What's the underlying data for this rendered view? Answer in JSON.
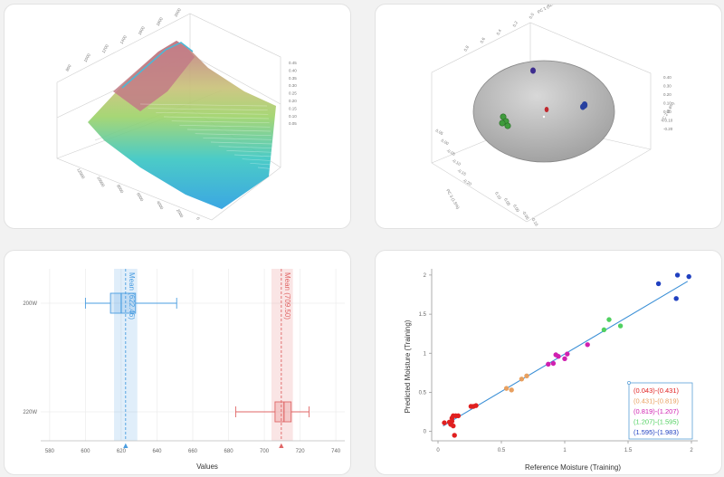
{
  "spectra3d": {
    "z_ticks": [
      "0.45",
      "0.40",
      "0.35",
      "0.30",
      "0.25",
      "0.20",
      "0.15",
      "0.10",
      "0.05"
    ],
    "back_ticks": [
      "800",
      "1000",
      "1200",
      "1400",
      "1600",
      "1800",
      "2000"
    ],
    "front_ticks": [
      "12000",
      "10000",
      "8000",
      "6000",
      "4000",
      "2000",
      "0"
    ]
  },
  "pca3d": {
    "axis_top": "PC 1 (92.5%)",
    "axis_right": "PC 2 (4.8%)",
    "axis_left": "PC 3 (1.5%)",
    "top_ticks": [
      "0.8",
      "0.6",
      "0.4",
      "0.2",
      "0.0"
    ],
    "right_ticks": [
      "0.40",
      "0.30",
      "0.20",
      "0.10",
      "0.00",
      "-0.10",
      "-0.20"
    ],
    "left_ticks": [
      "0.05",
      "0.00",
      "-0.05",
      "-0.10",
      "-0.15",
      "-0.20"
    ],
    "bottom_ticks": [
      "0.10",
      "0.05",
      "0.00",
      "-0.05",
      "-0.10"
    ],
    "colors": {
      "sphere": "#b5b5b5",
      "purple": "#3d2d8f",
      "blue": "#27409f",
      "red": "#c0282e",
      "green": "#3f9b3c"
    }
  },
  "chart_data": [
    {
      "type": "boxplot",
      "xlabel": "Values",
      "categories": [
        "200W",
        "220W"
      ],
      "xlim": [
        575,
        745
      ],
      "x_ticks": [
        "580",
        "600",
        "620",
        "640",
        "660",
        "680",
        "700",
        "720",
        "740"
      ],
      "series": [
        {
          "name": "200W",
          "min": 600,
          "q1": 614,
          "median": 620,
          "q3": 628,
          "max": 651,
          "mean": 622.46,
          "mean_label": "Mean (622.46)",
          "band": [
            616,
            629
          ],
          "color": "#4a9de0",
          "marker": "▲"
        },
        {
          "name": "220W",
          "min": 684,
          "q1": 706,
          "median": 711,
          "q3": 715,
          "max": 725,
          "mean": 709.5,
          "mean_label": "Mean (709.50)",
          "band": [
            704,
            716
          ],
          "color": "#e06666",
          "marker": "▲"
        }
      ]
    },
    {
      "type": "scatter",
      "xlabel": "Reference Moisture (Training)",
      "ylabel": "Predicted Moisture (Training)",
      "xlim": [
        -0.05,
        2.05
      ],
      "ylim": [
        -0.12,
        2.08
      ],
      "x_ticks": [
        "0",
        "0.5",
        "1",
        "1.5",
        "2"
      ],
      "y_ticks": [
        "0",
        "0.5",
        "1",
        "1.5",
        "2"
      ],
      "fit_line": {
        "x": [
          0.04,
          1.97
        ],
        "y": [
          0.07,
          1.92
        ],
        "color": "#3a8fd6"
      },
      "legend": [
        {
          "label": "(0.043)-(0.431)",
          "color": "#e02020"
        },
        {
          "label": "(0.431)-(0.819)",
          "color": "#e8a060"
        },
        {
          "label": "(0.819)-(1.207)",
          "color": "#d020b0"
        },
        {
          "label": "(1.207)-(1.595)",
          "color": "#50d060"
        },
        {
          "label": "(1.595)-(1.983)",
          "color": "#2040c0"
        }
      ],
      "series": [
        {
          "name": "(0.043)-(0.431)",
          "color": "#e02020",
          "points": [
            [
              0.05,
              0.11
            ],
            [
              0.09,
              0.12
            ],
            [
              0.1,
              0.09
            ],
            [
              0.11,
              0.13
            ],
            [
              0.11,
              0.17
            ],
            [
              0.12,
              0.2
            ],
            [
              0.13,
              -0.05
            ],
            [
              0.14,
              0.2
            ],
            [
              0.16,
              0.2
            ],
            [
              0.26,
              0.32
            ],
            [
              0.28,
              0.32
            ],
            [
              0.3,
              0.33
            ],
            [
              0.12,
              0.07
            ]
          ]
        },
        {
          "name": "(0.431)-(0.819)",
          "color": "#e8a060",
          "points": [
            [
              0.54,
              0.55
            ],
            [
              0.58,
              0.53
            ],
            [
              0.66,
              0.67
            ],
            [
              0.7,
              0.71
            ]
          ]
        },
        {
          "name": "(0.819)-(1.207)",
          "color": "#d020b0",
          "points": [
            [
              0.87,
              0.86
            ],
            [
              0.91,
              0.87
            ],
            [
              0.93,
              0.98
            ],
            [
              0.95,
              0.96
            ],
            [
              1.0,
              0.93
            ],
            [
              1.02,
              0.99
            ],
            [
              1.18,
              1.11
            ]
          ]
        },
        {
          "name": "(1.207)-(1.595)",
          "color": "#50d060",
          "points": [
            [
              1.31,
              1.3
            ],
            [
              1.35,
              1.43
            ],
            [
              1.44,
              1.35
            ]
          ]
        },
        {
          "name": "(1.595)-(1.983)",
          "color": "#2040c0",
          "points": [
            [
              1.74,
              1.89
            ],
            [
              1.88,
              1.7
            ],
            [
              1.89,
              2.0
            ],
            [
              1.98,
              1.98
            ]
          ]
        }
      ]
    }
  ]
}
